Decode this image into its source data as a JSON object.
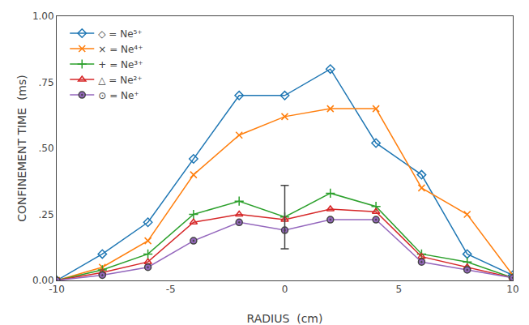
{
  "chart_data": {
    "type": "line",
    "xlabel": "RADIUS  (cm)",
    "ylabel": "CONFINEMENT TIME  (ms)",
    "x": [
      -10,
      -8,
      -6,
      -4,
      -2,
      0,
      2,
      4,
      6,
      8,
      10
    ],
    "series": [
      {
        "name": "◇ = Ne⁵⁺",
        "marker": "diamond-open",
        "values": [
          0.0,
          0.1,
          0.22,
          0.46,
          0.7,
          0.7,
          0.8,
          0.52,
          0.4,
          0.1,
          0.02
        ]
      },
      {
        "name": "× = Ne⁴⁺",
        "marker": "x",
        "values": [
          0.0,
          0.05,
          0.15,
          0.4,
          0.55,
          0.62,
          0.65,
          0.65,
          0.35,
          0.25,
          0.02
        ]
      },
      {
        "name": "+ = Ne³⁺",
        "marker": "plus",
        "values": [
          0.0,
          0.04,
          0.1,
          0.25,
          0.3,
          0.24,
          0.33,
          0.28,
          0.1,
          0.07,
          0.01
        ]
      },
      {
        "name": "△ = Ne²⁺",
        "marker": "triangle-open",
        "values": [
          0.0,
          0.03,
          0.07,
          0.22,
          0.25,
          0.23,
          0.27,
          0.26,
          0.09,
          0.05,
          0.01
        ]
      },
      {
        "name": "⊙ = Ne⁺",
        "marker": "circle-dot",
        "values": [
          0.0,
          0.02,
          0.05,
          0.15,
          0.22,
          0.19,
          0.23,
          0.23,
          0.07,
          0.04,
          0.01
        ]
      }
    ],
    "error_bars": [
      {
        "x": 0,
        "y": 0.24,
        "yerr": 0.12
      }
    ],
    "xlim": [
      -10,
      10
    ],
    "xticks": [
      -10,
      -5,
      0,
      5,
      10
    ],
    "ylim": [
      0.0,
      1.0
    ],
    "yticks": [
      {
        "value": 0.0,
        "label": "0.00"
      },
      {
        "value": 0.25,
        "label": ".25"
      },
      {
        "value": 0.5,
        "label": ".50"
      },
      {
        "value": 0.75,
        "label": ".75"
      },
      {
        "value": 1.0,
        "label": "1.00"
      }
    ],
    "grid": false,
    "legend": "upper left"
  }
}
